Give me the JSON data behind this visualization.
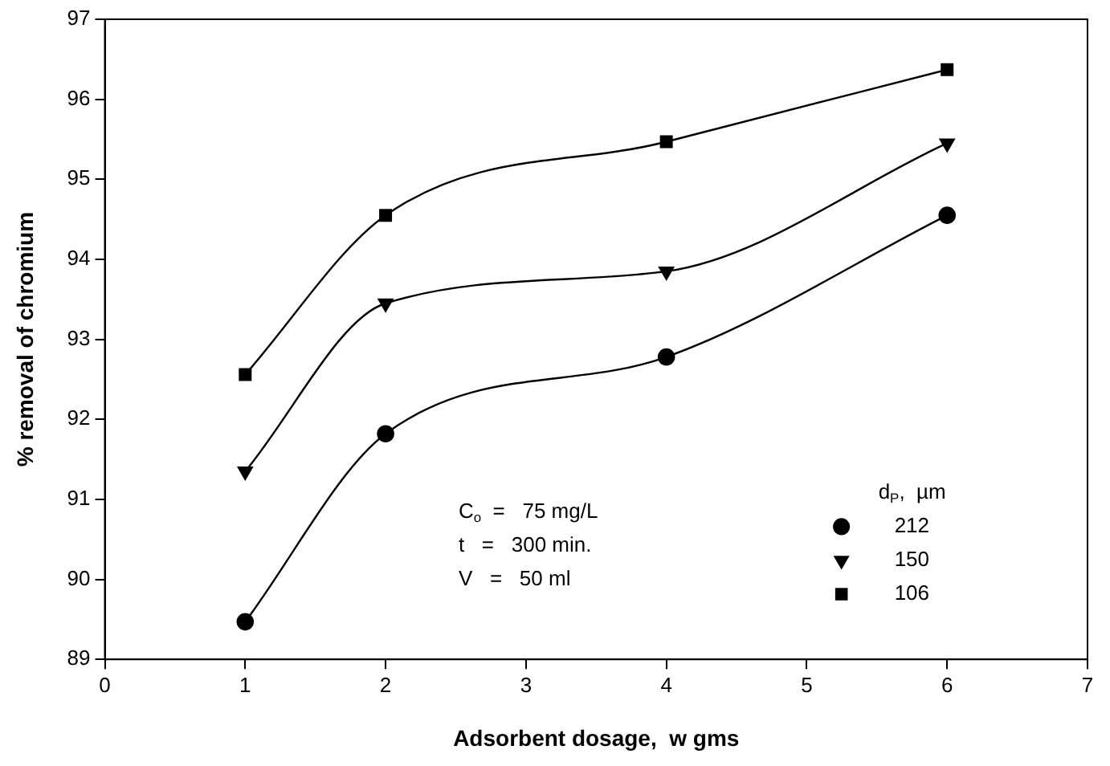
{
  "chart_data": {
    "type": "line",
    "xlabel": "Adsorbent dosage,  w gms",
    "ylabel": "% removal of chromium",
    "legend_title": "d$_{P}$,  µm",
    "legend": "bottom right",
    "grid": false,
    "x": [
      1,
      2,
      4,
      6
    ],
    "xlim": [
      0,
      7
    ],
    "xticks": [
      0,
      1,
      2,
      3,
      4,
      5,
      6,
      7
    ],
    "ylim": [
      89,
      97
    ],
    "yticks": [
      89,
      90,
      91,
      92,
      93,
      94,
      95,
      96,
      97
    ],
    "series": [
      {
        "name": "212",
        "color": "#000000",
        "marker": "circle",
        "values": [
          89.47,
          91.82,
          92.78,
          94.55
        ]
      },
      {
        "name": "150",
        "color": "#000000",
        "marker": "triangle",
        "values": [
          91.35,
          93.45,
          93.85,
          95.45
        ]
      },
      {
        "name": "106",
        "color": "#000000",
        "marker": "square",
        "values": [
          92.56,
          94.55,
          95.47,
          96.37
        ]
      }
    ],
    "annotations": [
      "C$_{o}$  =   75 mg/L",
      "t   =   300 min.",
      "V   =   50 ml"
    ]
  }
}
